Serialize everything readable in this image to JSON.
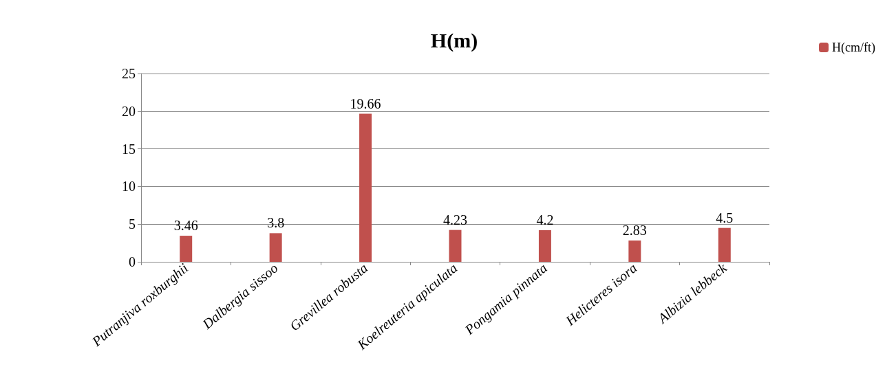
{
  "chart_data": {
    "type": "bar",
    "title": "H(m)",
    "categories": [
      "Putranjiva roxburghii",
      "Dalbergia sissoo",
      "Grevillea robusta",
      "Koelreuteria apiculata",
      "Pongamia pinnata",
      "Helicteres isora",
      "Albizia lebbeck"
    ],
    "series": [
      {
        "name": "H(cm/ft)",
        "color": "#c0504d",
        "values": [
          3.46,
          3.8,
          19.66,
          4.23,
          4.2,
          2.83,
          4.5
        ]
      }
    ],
    "ylim": [
      0,
      25
    ],
    "yticks": [
      0,
      5,
      10,
      15,
      20,
      25
    ],
    "grid": "y",
    "legend": "top right",
    "data_labels": true
  }
}
